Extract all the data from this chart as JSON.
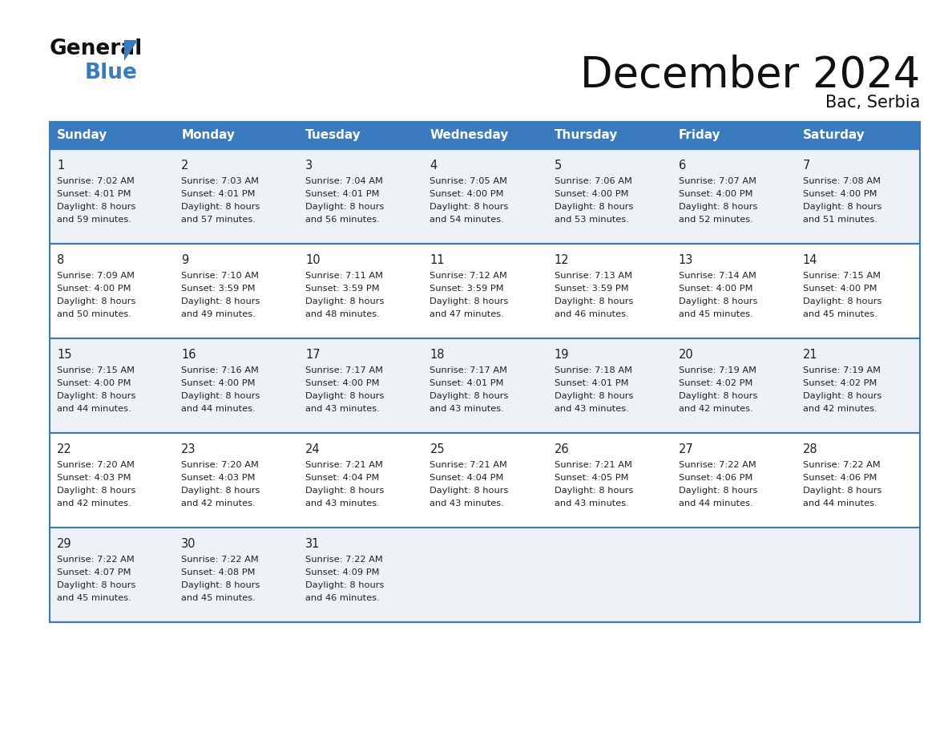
{
  "title": "December 2024",
  "subtitle": "Bac, Serbia",
  "days_of_week": [
    "Sunday",
    "Monday",
    "Tuesday",
    "Wednesday",
    "Thursday",
    "Friday",
    "Saturday"
  ],
  "header_bg": "#3a7bbf",
  "header_text": "#ffffff",
  "row_bg_even": "#eef2f7",
  "row_bg_odd": "#ffffff",
  "border_color": "#3a7bbf",
  "cell_border_color": "#aaaaaa",
  "text_color": "#222222",
  "calendar_data": [
    [
      {
        "day": 1,
        "sunrise": "7:02 AM",
        "sunset": "4:01 PM",
        "daylight": "8 hours and 59 minutes"
      },
      {
        "day": 2,
        "sunrise": "7:03 AM",
        "sunset": "4:01 PM",
        "daylight": "8 hours and 57 minutes"
      },
      {
        "day": 3,
        "sunrise": "7:04 AM",
        "sunset": "4:01 PM",
        "daylight": "8 hours and 56 minutes"
      },
      {
        "day": 4,
        "sunrise": "7:05 AM",
        "sunset": "4:00 PM",
        "daylight": "8 hours and 54 minutes"
      },
      {
        "day": 5,
        "sunrise": "7:06 AM",
        "sunset": "4:00 PM",
        "daylight": "8 hours and 53 minutes"
      },
      {
        "day": 6,
        "sunrise": "7:07 AM",
        "sunset": "4:00 PM",
        "daylight": "8 hours and 52 minutes"
      },
      {
        "day": 7,
        "sunrise": "7:08 AM",
        "sunset": "4:00 PM",
        "daylight": "8 hours and 51 minutes"
      }
    ],
    [
      {
        "day": 8,
        "sunrise": "7:09 AM",
        "sunset": "4:00 PM",
        "daylight": "8 hours and 50 minutes"
      },
      {
        "day": 9,
        "sunrise": "7:10 AM",
        "sunset": "3:59 PM",
        "daylight": "8 hours and 49 minutes"
      },
      {
        "day": 10,
        "sunrise": "7:11 AM",
        "sunset": "3:59 PM",
        "daylight": "8 hours and 48 minutes"
      },
      {
        "day": 11,
        "sunrise": "7:12 AM",
        "sunset": "3:59 PM",
        "daylight": "8 hours and 47 minutes"
      },
      {
        "day": 12,
        "sunrise": "7:13 AM",
        "sunset": "3:59 PM",
        "daylight": "8 hours and 46 minutes"
      },
      {
        "day": 13,
        "sunrise": "7:14 AM",
        "sunset": "4:00 PM",
        "daylight": "8 hours and 45 minutes"
      },
      {
        "day": 14,
        "sunrise": "7:15 AM",
        "sunset": "4:00 PM",
        "daylight": "8 hours and 45 minutes"
      }
    ],
    [
      {
        "day": 15,
        "sunrise": "7:15 AM",
        "sunset": "4:00 PM",
        "daylight": "8 hours and 44 minutes"
      },
      {
        "day": 16,
        "sunrise": "7:16 AM",
        "sunset": "4:00 PM",
        "daylight": "8 hours and 44 minutes"
      },
      {
        "day": 17,
        "sunrise": "7:17 AM",
        "sunset": "4:00 PM",
        "daylight": "8 hours and 43 minutes"
      },
      {
        "day": 18,
        "sunrise": "7:17 AM",
        "sunset": "4:01 PM",
        "daylight": "8 hours and 43 minutes"
      },
      {
        "day": 19,
        "sunrise": "7:18 AM",
        "sunset": "4:01 PM",
        "daylight": "8 hours and 43 minutes"
      },
      {
        "day": 20,
        "sunrise": "7:19 AM",
        "sunset": "4:02 PM",
        "daylight": "8 hours and 42 minutes"
      },
      {
        "day": 21,
        "sunrise": "7:19 AM",
        "sunset": "4:02 PM",
        "daylight": "8 hours and 42 minutes"
      }
    ],
    [
      {
        "day": 22,
        "sunrise": "7:20 AM",
        "sunset": "4:03 PM",
        "daylight": "8 hours and 42 minutes"
      },
      {
        "day": 23,
        "sunrise": "7:20 AM",
        "sunset": "4:03 PM",
        "daylight": "8 hours and 42 minutes"
      },
      {
        "day": 24,
        "sunrise": "7:21 AM",
        "sunset": "4:04 PM",
        "daylight": "8 hours and 43 minutes"
      },
      {
        "day": 25,
        "sunrise": "7:21 AM",
        "sunset": "4:04 PM",
        "daylight": "8 hours and 43 minutes"
      },
      {
        "day": 26,
        "sunrise": "7:21 AM",
        "sunset": "4:05 PM",
        "daylight": "8 hours and 43 minutes"
      },
      {
        "day": 27,
        "sunrise": "7:22 AM",
        "sunset": "4:06 PM",
        "daylight": "8 hours and 44 minutes"
      },
      {
        "day": 28,
        "sunrise": "7:22 AM",
        "sunset": "4:06 PM",
        "daylight": "8 hours and 44 minutes"
      }
    ],
    [
      {
        "day": 29,
        "sunrise": "7:22 AM",
        "sunset": "4:07 PM",
        "daylight": "8 hours and 45 minutes"
      },
      {
        "day": 30,
        "sunrise": "7:22 AM",
        "sunset": "4:08 PM",
        "daylight": "8 hours and 45 minutes"
      },
      {
        "day": 31,
        "sunrise": "7:22 AM",
        "sunset": "4:09 PM",
        "daylight": "8 hours and 46 minutes"
      },
      null,
      null,
      null,
      null
    ]
  ]
}
